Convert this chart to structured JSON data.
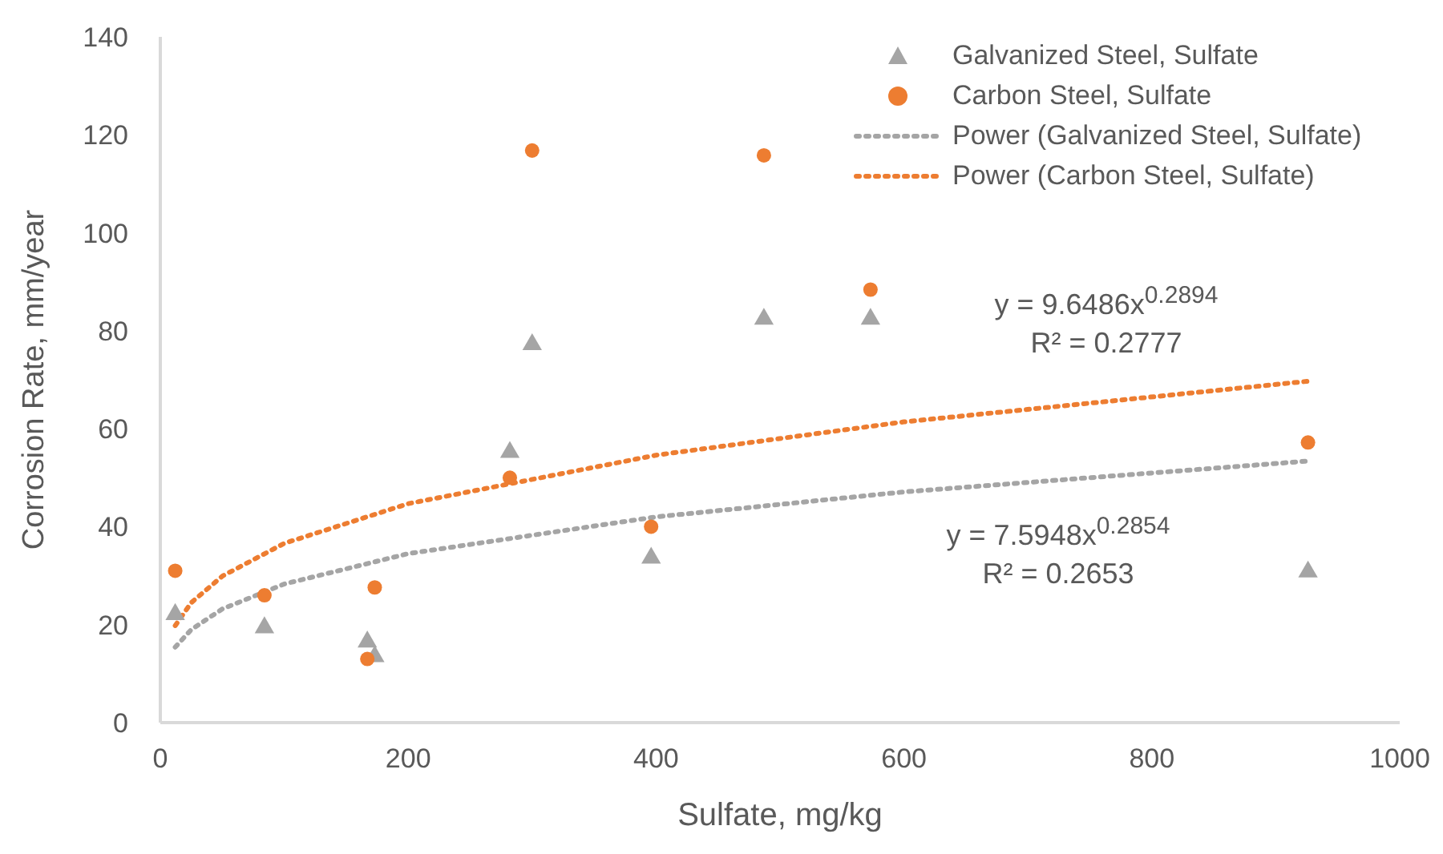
{
  "chart_data": {
    "type": "scatter",
    "xlabel": "Sulfate, mg/kg",
    "ylabel": "Corrosion Rate, mm/year",
    "xlim": [
      0,
      1000
    ],
    "xticks": [
      0,
      200,
      400,
      600,
      800,
      1000
    ],
    "ylim": [
      0,
      140
    ],
    "yticks": [
      0,
      20,
      40,
      60,
      80,
      100,
      120,
      140
    ],
    "grid": false,
    "legend": "top right",
    "series": [
      {
        "name": "Galvanized Steel, Sulfate",
        "marker": "triangle",
        "color": "#a5a5a5",
        "x": [
          12,
          84,
          167,
          173,
          282,
          300,
          396,
          487,
          573,
          926
        ],
        "values": [
          22.1,
          19.4,
          16.5,
          13.5,
          55.2,
          77.2,
          33.6,
          82.4,
          82.4,
          30.8
        ]
      },
      {
        "name": "Carbon Steel, Sulfate",
        "marker": "circle",
        "color": "#ed7d31",
        "x": [
          12,
          84,
          167,
          173,
          282,
          300,
          396,
          487,
          573,
          926
        ],
        "values": [
          31,
          26,
          13,
          27.6,
          50,
          116.8,
          40,
          115.8,
          88.4,
          57.2
        ]
      },
      {
        "name": "Power (Galvanized Steel, Sulfate)",
        "type": "line",
        "line_style": "dotted",
        "marker": "none",
        "color": "#a5a5a5",
        "x": [
          12,
          25,
          50,
          100,
          200,
          400,
          600,
          926
        ],
        "values": [
          15.4,
          19.0,
          23.2,
          28.3,
          34.5,
          42.0,
          47.1,
          53.4
        ]
      },
      {
        "name": "Power (Carbon Steel, Sulfate)",
        "type": "line",
        "line_style": "dotted",
        "marker": "none",
        "color": "#ed7d31",
        "x": [
          12,
          25,
          50,
          100,
          200,
          400,
          600,
          926
        ],
        "values": [
          19.8,
          24.5,
          29.9,
          36.6,
          44.7,
          54.6,
          61.4,
          69.7
        ]
      }
    ],
    "annotations": [
      "y = 9.6486x$^{0.2894}$",
      "R² = 0.2777",
      "y = 7.5948x$^{0.2854}$",
      "R² = 0.2653"
    ]
  }
}
